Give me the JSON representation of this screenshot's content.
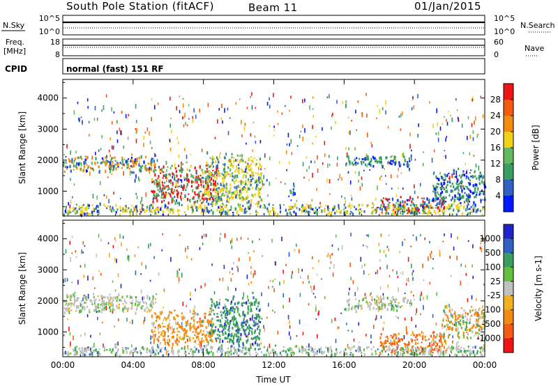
{
  "header": {
    "title": "South Pole Station (fitACF)",
    "beam": "Beam 11",
    "date": "01/Jan/2015"
  },
  "status_panels": {
    "nsky_label": "N.Sky",
    "nsky_ticks": [
      "10^5",
      "10^0"
    ],
    "nsearch_label": "N.Search",
    "nsearch_ticks": [
      "10^5",
      "10^0"
    ],
    "freq_label_1": "Freq.",
    "freq_label_2": "[MHz]",
    "freq_ticks": [
      "18",
      "8"
    ],
    "nave_label": "Nave",
    "nave_ticks": [
      "60",
      "0"
    ],
    "cpid_label": "CPID",
    "cpid_text": "normal (fast) 151 RF"
  },
  "colors": {
    "power_scale": [
      "#0019ff",
      "#2f62c2",
      "#3a9e62",
      "#64b860",
      "#f2cf18",
      "#f58a10",
      "#f25b10",
      "#ee1515"
    ],
    "velocity_scale": [
      "#2222cc",
      "#2f62c2",
      "#3a9e62",
      "#62c040",
      "#c0c0c0",
      "#f2b020",
      "#f58a10",
      "#f25b10",
      "#ee1515"
    ]
  },
  "chart_data": [
    {
      "type": "heatmap",
      "name": "power",
      "ylabel": "Slant Range [km]",
      "yticks": [
        "1000",
        "2000",
        "3000",
        "4000"
      ],
      "ylim": [
        200,
        4600
      ],
      "xlim_hours": [
        0,
        24
      ],
      "xticks": [
        "00:00",
        "04:00",
        "08:00",
        "12:00",
        "16:00",
        "20:00",
        "00:00"
      ],
      "colorbar_label": "Power [dB]",
      "colorbar_ticks": [
        "4",
        "8",
        "12",
        "16",
        "20",
        "24",
        "28"
      ],
      "regions": [
        {
          "t0": 0.0,
          "t1": 5.3,
          "r0": 1600,
          "r1": 2200,
          "level": 2,
          "core": 5
        },
        {
          "t0": 5.0,
          "t1": 8.8,
          "r0": 500,
          "r1": 2000,
          "level": 3,
          "core": 7
        },
        {
          "t0": 8.0,
          "t1": 11.3,
          "r0": 500,
          "r1": 2350,
          "level": 3,
          "core": 4
        },
        {
          "t0": 12.8,
          "t1": 13.2,
          "r0": 900,
          "r1": 1300,
          "level": 2,
          "core": 3
        },
        {
          "t0": 16.0,
          "t1": 19.7,
          "r0": 1800,
          "r1": 2200,
          "level": 1,
          "core": 2
        },
        {
          "t0": 18.0,
          "t1": 21.7,
          "r0": 300,
          "r1": 900,
          "level": 2,
          "core": 7
        },
        {
          "t0": 21.0,
          "t1": 24.0,
          "r0": 600,
          "r1": 1800,
          "level": 1,
          "core": 2
        },
        {
          "t0": 0.0,
          "t1": 24.0,
          "r0": 250,
          "r1": 650,
          "level": 2,
          "core": 4
        }
      ]
    },
    {
      "type": "heatmap",
      "name": "velocity",
      "ylabel": "Slant Range [km]",
      "yticks": [
        "1000",
        "2000",
        "3000",
        "4000"
      ],
      "ylim": [
        200,
        4600
      ],
      "xlim_hours": [
        0,
        24
      ],
      "xticks": [
        "00:00",
        "04:00",
        "08:00",
        "12:00",
        "16:00",
        "20:00",
        "00:00"
      ],
      "xlabel": "Time UT",
      "colorbar_label": "Velocity [m s-1]",
      "colorbar_ticks": [
        "1000",
        "500",
        "100",
        "25",
        "-25",
        "-100",
        "-500",
        "-1000"
      ],
      "regions": [
        {
          "t0": 0.0,
          "t1": 5.3,
          "r0": 1600,
          "r1": 2300,
          "level": 4,
          "core": 4
        },
        {
          "t0": 5.0,
          "t1": 8.5,
          "r0": 500,
          "r1": 1800,
          "level": 6,
          "core": 6
        },
        {
          "t0": 8.3,
          "t1": 11.2,
          "r0": 400,
          "r1": 2300,
          "level": 2,
          "core": 2
        },
        {
          "t0": 16.0,
          "t1": 19.8,
          "r0": 1700,
          "r1": 2200,
          "level": 4,
          "core": 4
        },
        {
          "t0": 18.0,
          "t1": 21.8,
          "r0": 300,
          "r1": 1100,
          "level": 6,
          "core": 7
        },
        {
          "t0": 21.5,
          "t1": 24.0,
          "r0": 800,
          "r1": 1900,
          "level": 4,
          "core": 6
        },
        {
          "t0": 0.0,
          "t1": 24.0,
          "r0": 250,
          "r1": 600,
          "level": 3,
          "core": 4
        }
      ]
    }
  ]
}
